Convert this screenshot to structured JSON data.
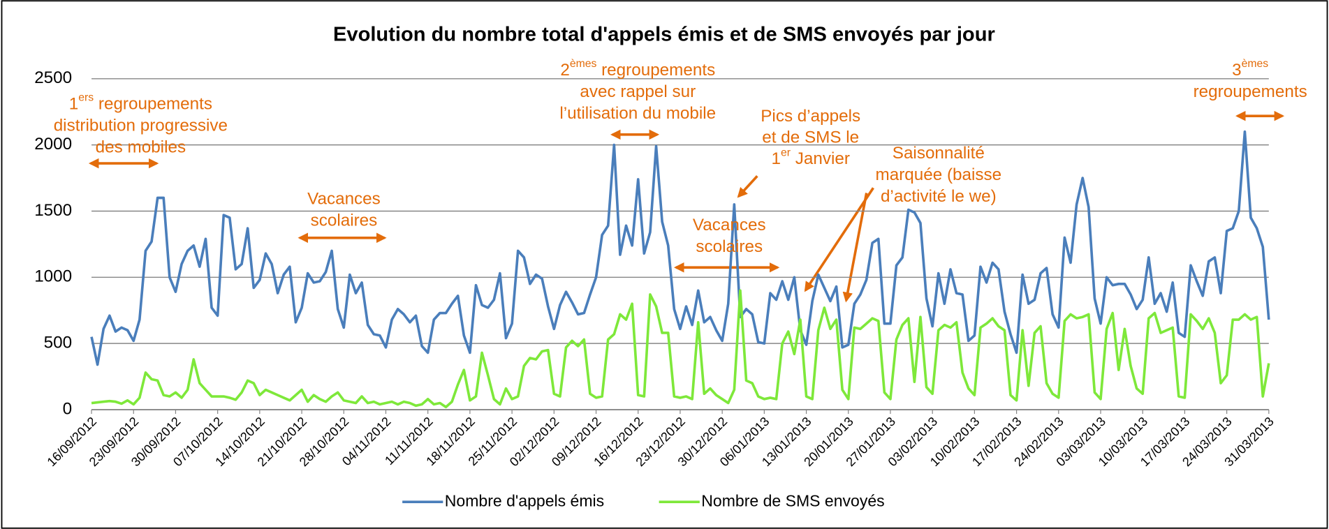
{
  "chart_data": {
    "type": "line",
    "title": "Evolution du nombre total d'appels émis et de SMS envoyés par jour",
    "categories": [
      "16/09/2012",
      null,
      null,
      null,
      null,
      null,
      null,
      "23/09/2012",
      null,
      null,
      null,
      null,
      null,
      null,
      "30/09/2012",
      null,
      null,
      null,
      null,
      null,
      null,
      "07/10/2012",
      null,
      null,
      null,
      null,
      null,
      null,
      "14/10/2012",
      null,
      null,
      null,
      null,
      null,
      null,
      "21/10/2012",
      null,
      null,
      null,
      null,
      null,
      null,
      "28/10/2012",
      null,
      null,
      null,
      null,
      null,
      null,
      "04/11/2012",
      null,
      null,
      null,
      null,
      null,
      null,
      "11/11/2012",
      null,
      null,
      null,
      null,
      null,
      null,
      "18/11/2012",
      null,
      null,
      null,
      null,
      null,
      null,
      "25/11/2012",
      null,
      null,
      null,
      null,
      null,
      null,
      "02/12/2012",
      null,
      null,
      null,
      null,
      null,
      null,
      "09/12/2012",
      null,
      null,
      null,
      null,
      null,
      null,
      "16/12/2012",
      null,
      null,
      null,
      null,
      null,
      null,
      "23/12/2012",
      null,
      null,
      null,
      null,
      null,
      null,
      "30/12/2012",
      null,
      null,
      null,
      null,
      null,
      null,
      "06/01/2013",
      null,
      null,
      null,
      null,
      null,
      null,
      "13/01/2013",
      null,
      null,
      null,
      null,
      null,
      null,
      "20/01/2013",
      null,
      null,
      null,
      null,
      null,
      null,
      "27/01/2013",
      null,
      null,
      null,
      null,
      null,
      null,
      "03/02/2013",
      null,
      null,
      null,
      null,
      null,
      null,
      "10/02/2013",
      null,
      null,
      null,
      null,
      null,
      null,
      "17/02/2013",
      null,
      null,
      null,
      null,
      null,
      null,
      "24/02/2013",
      null,
      null,
      null,
      null,
      null,
      null,
      "03/03/2013",
      null,
      null,
      null,
      null,
      null,
      null,
      "10/03/2013",
      null,
      null,
      null,
      null,
      null,
      null,
      "17/03/2013",
      null,
      null,
      null,
      null,
      null,
      null,
      "24/03/2013",
      null,
      null,
      null,
      null,
      null,
      null,
      "31/03/2013"
    ],
    "series": [
      {
        "name": "Nombre d'appels émis",
        "color": "#4a7ebb",
        "values": [
          550,
          340,
          610,
          710,
          590,
          620,
          600,
          520,
          680,
          1200,
          1270,
          1600,
          1600,
          1000,
          890,
          1100,
          1200,
          1240,
          1080,
          1290,
          770,
          710,
          1470,
          1450,
          1060,
          1100,
          1370,
          920,
          980,
          1180,
          1100,
          880,
          1020,
          1080,
          660,
          770,
          1030,
          960,
          970,
          1040,
          1200,
          760,
          620,
          1020,
          880,
          960,
          640,
          570,
          560,
          470,
          680,
          760,
          720,
          660,
          710,
          480,
          430,
          680,
          730,
          730,
          800,
          860,
          560,
          430,
          940,
          790,
          770,
          830,
          1030,
          540,
          650,
          1200,
          1150,
          950,
          1020,
          990,
          780,
          610,
          790,
          890,
          810,
          720,
          730,
          870,
          1000,
          1320,
          1390,
          2000,
          1170,
          1390,
          1240,
          1740,
          1180,
          1340,
          1990,
          1420,
          1240,
          760,
          610,
          780,
          640,
          900,
          660,
          700,
          600,
          520,
          800,
          1550,
          700,
          760,
          720,
          510,
          500,
          880,
          830,
          970,
          830,
          1000,
          600,
          490,
          820,
          1020,
          920,
          820,
          930,
          470,
          490,
          800,
          870,
          980,
          1260,
          1290,
          650,
          650,
          1090,
          1150,
          1510,
          1490,
          1410,
          840,
          630,
          1030,
          800,
          1060,
          880,
          870,
          520,
          560,
          1080,
          960,
          1110,
          1060,
          740,
          570,
          430,
          1020,
          800,
          830,
          1030,
          1070,
          720,
          620,
          1300,
          1110,
          1550,
          1750,
          1530,
          840,
          650,
          1000,
          940,
          950,
          950,
          870,
          760,
          830,
          1150,
          800,
          880,
          740,
          960,
          580,
          550,
          1090,
          970,
          860,
          1120,
          1150,
          880,
          1350,
          1370,
          1500,
          2100,
          1450,
          1370,
          1230,
          680
        ]
      },
      {
        "name": "Nombre de SMS envoyés",
        "color": "#7ee83a",
        "values": [
          50,
          55,
          60,
          65,
          60,
          45,
          70,
          40,
          90,
          280,
          230,
          220,
          110,
          100,
          130,
          90,
          150,
          380,
          200,
          150,
          100,
          100,
          100,
          90,
          75,
          130,
          220,
          200,
          110,
          150,
          130,
          110,
          90,
          70,
          110,
          150,
          60,
          110,
          80,
          60,
          100,
          130,
          70,
          60,
          50,
          100,
          50,
          60,
          40,
          50,
          60,
          40,
          60,
          50,
          30,
          40,
          80,
          40,
          50,
          20,
          60,
          190,
          300,
          70,
          100,
          430,
          260,
          80,
          40,
          160,
          80,
          100,
          330,
          390,
          380,
          440,
          450,
          120,
          100,
          470,
          520,
          480,
          530,
          120,
          90,
          100,
          530,
          570,
          720,
          680,
          800,
          110,
          100,
          870,
          780,
          580,
          580,
          100,
          90,
          100,
          80,
          660,
          120,
          160,
          110,
          80,
          50,
          150,
          900,
          220,
          200,
          100,
          80,
          90,
          80,
          500,
          590,
          420,
          680,
          100,
          80,
          600,
          770,
          610,
          680,
          150,
          80,
          620,
          610,
          650,
          690,
          670,
          130,
          80,
          530,
          640,
          690,
          210,
          700,
          170,
          120,
          600,
          640,
          620,
          660,
          280,
          160,
          110,
          620,
          650,
          690,
          630,
          600,
          110,
          70,
          600,
          180,
          580,
          630,
          200,
          120,
          90,
          670,
          720,
          690,
          700,
          720,
          130,
          80,
          610,
          730,
          300,
          610,
          330,
          160,
          120,
          690,
          730,
          580,
          600,
          620,
          100,
          90,
          720,
          670,
          610,
          690,
          580,
          200,
          260,
          680,
          680,
          720,
          680,
          700,
          100,
          350
        ]
      }
    ],
    "ylim": [
      0,
      2500
    ],
    "yticks": [
      0,
      500,
      1000,
      1500,
      2000,
      2500
    ],
    "grid": true,
    "legend": "bottom",
    "annotation_color": "#e36c0a",
    "annotations": [
      {
        "lines": [
          {
            "base": "1",
            "sup": "ers",
            "rest": " regroupements"
          },
          "distribution progressive",
          "des mobiles"
        ]
      },
      {
        "lines": [
          "Vacances",
          "scolaires"
        ]
      },
      {
        "lines": [
          {
            "base": "2",
            "sup": "èmes",
            "rest": " regroupements"
          },
          "avec rappel sur",
          "l’utilisation du mobile"
        ]
      },
      {
        "lines": [
          "Pics d’appels",
          "et de SMS le",
          {
            "base": "1",
            "sup": "er",
            "rest": " Janvier"
          }
        ]
      },
      {
        "lines": [
          "Saisonnalité",
          "marquée (baisse",
          "d’activité le we)"
        ]
      },
      {
        "lines": [
          "Vacances",
          "scolaires"
        ]
      },
      {
        "lines": [
          {
            "base": "3",
            "sup": "èmes"
          },
          "regroupements"
        ]
      }
    ]
  }
}
